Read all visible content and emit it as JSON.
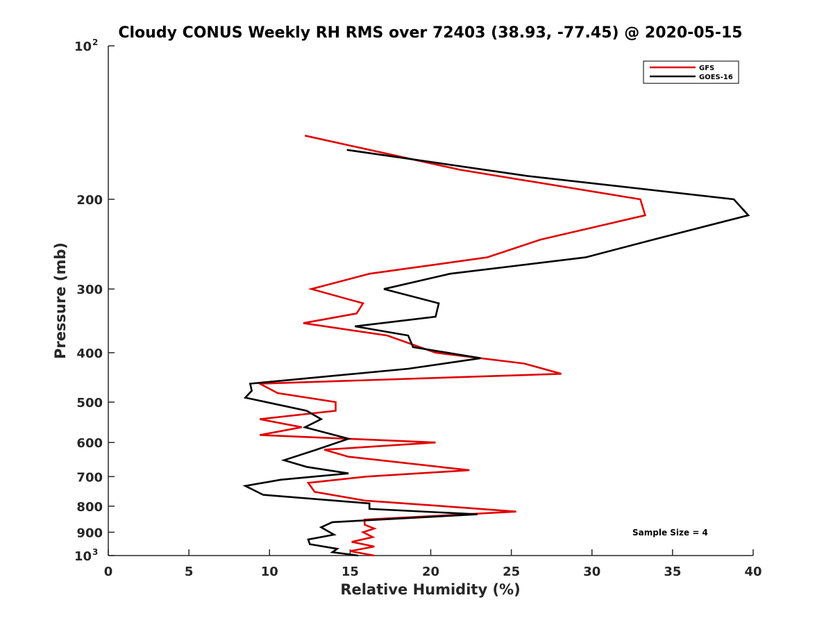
{
  "chart_data": {
    "type": "line",
    "orientation": "vertical-profile",
    "title": "Cloudy CONUS Weekly RH RMS over 72403 (38.93, -77.45) @ 2020-05-15",
    "xlabel": "Relative Humidity (%)",
    "ylabel": "Pressure (mb)",
    "xlim": [
      0,
      40
    ],
    "ylim": [
      100,
      1000
    ],
    "y_scale": "log",
    "y_reversed": true,
    "grid": false,
    "legend_position": "top-right",
    "x_ticks": [
      "0",
      "5",
      "10",
      "15",
      "20",
      "25",
      "30",
      "35",
      "40"
    ],
    "y_ticks": [
      {
        "value": 100,
        "label": "10",
        "sup": "2"
      },
      {
        "value": 200,
        "label": "200",
        "sup": ""
      },
      {
        "value": 300,
        "label": "300",
        "sup": ""
      },
      {
        "value": 400,
        "label": "400",
        "sup": ""
      },
      {
        "value": 500,
        "label": "500",
        "sup": ""
      },
      {
        "value": 600,
        "label": "600",
        "sup": ""
      },
      {
        "value": 700,
        "label": "700",
        "sup": ""
      },
      {
        "value": 800,
        "label": "800",
        "sup": ""
      },
      {
        "value": 900,
        "label": "900",
        "sup": ""
      },
      {
        "value": 1000,
        "label": "10",
        "sup": "3"
      }
    ],
    "annotation": "Sample Size = 4",
    "series": [
      {
        "name": "GFS",
        "color": "#e00000",
        "points": [
          [
            12.2,
            150
          ],
          [
            21.8,
            175
          ],
          [
            33.0,
            200
          ],
          [
            33.3,
            215
          ],
          [
            26.8,
            240
          ],
          [
            23.5,
            260
          ],
          [
            16.2,
            280
          ],
          [
            12.6,
            300
          ],
          [
            15.8,
            320
          ],
          [
            15.4,
            335
          ],
          [
            12.1,
            350
          ],
          [
            17.3,
            370
          ],
          [
            20.3,
            400
          ],
          [
            25.8,
            420
          ],
          [
            28.1,
            440
          ],
          [
            9.4,
            460
          ],
          [
            10.5,
            480
          ],
          [
            14.1,
            500
          ],
          [
            14.1,
            520
          ],
          [
            9.4,
            540
          ],
          [
            12.0,
            560
          ],
          [
            9.4,
            580
          ],
          [
            20.3,
            600
          ],
          [
            13.4,
            620
          ],
          [
            14.9,
            640
          ],
          [
            22.4,
            680
          ],
          [
            16.0,
            700
          ],
          [
            12.4,
            720
          ],
          [
            12.8,
            750
          ],
          [
            15.9,
            780
          ],
          [
            20.8,
            800
          ],
          [
            25.3,
            820
          ],
          [
            15.9,
            850
          ],
          [
            15.9,
            870
          ],
          [
            16.5,
            885
          ],
          [
            15.8,
            900
          ],
          [
            16.4,
            920
          ],
          [
            15.1,
            940
          ],
          [
            16.5,
            960
          ],
          [
            15.0,
            980
          ],
          [
            16.5,
            1000
          ]
        ]
      },
      {
        "name": "GOES-16",
        "color": "#000000",
        "points": [
          [
            14.8,
            160
          ],
          [
            26.0,
            180
          ],
          [
            38.8,
            200
          ],
          [
            39.7,
            215
          ],
          [
            33.8,
            240
          ],
          [
            29.6,
            260
          ],
          [
            21.2,
            280
          ],
          [
            17.1,
            300
          ],
          [
            20.5,
            320
          ],
          [
            20.3,
            340
          ],
          [
            15.3,
            355
          ],
          [
            18.6,
            370
          ],
          [
            18.9,
            390
          ],
          [
            23.1,
            410
          ],
          [
            18.6,
            430
          ],
          [
            8.8,
            460
          ],
          [
            8.9,
            475
          ],
          [
            8.5,
            490
          ],
          [
            12.3,
            520
          ],
          [
            13.2,
            540
          ],
          [
            12.2,
            560
          ],
          [
            14.9,
            590
          ],
          [
            12.9,
            620
          ],
          [
            10.9,
            650
          ],
          [
            12.3,
            670
          ],
          [
            14.9,
            690
          ],
          [
            10.7,
            710
          ],
          [
            8.5,
            730
          ],
          [
            9.6,
            760
          ],
          [
            16.2,
            790
          ],
          [
            16.2,
            810
          ],
          [
            22.9,
            830
          ],
          [
            13.9,
            860
          ],
          [
            13.2,
            880
          ],
          [
            14.0,
            910
          ],
          [
            12.4,
            930
          ],
          [
            12.5,
            950
          ],
          [
            14.2,
            970
          ],
          [
            13.9,
            985
          ],
          [
            15.5,
            1000
          ]
        ]
      }
    ]
  }
}
